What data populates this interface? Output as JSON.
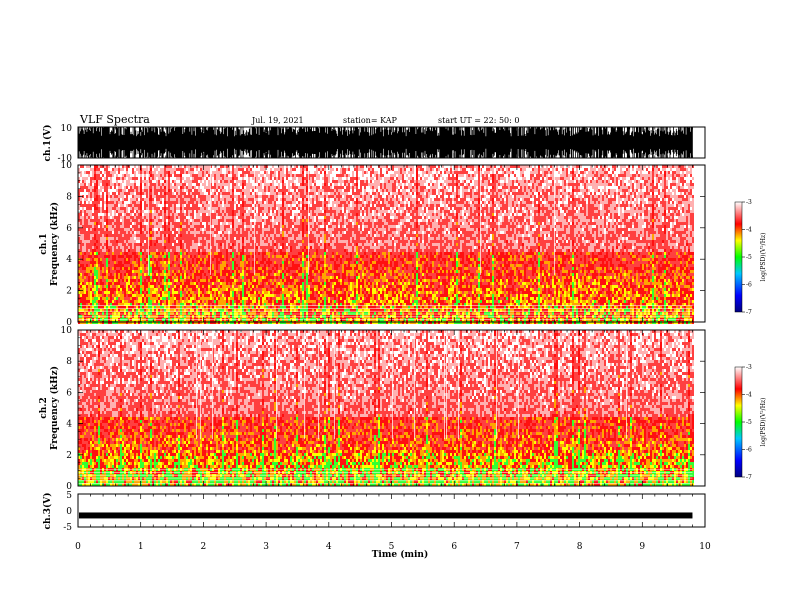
{
  "header": {
    "title": "VLF Spectra",
    "date": "Jul. 19, 2021",
    "station": "station= KAP",
    "start": "start UT = 22: 50: 0"
  },
  "chart_data": {
    "type": "heatmap",
    "xlabel": "Time (min)",
    "x_ticks": [
      "0",
      "1",
      "2",
      "3",
      "4",
      "5",
      "6",
      "7",
      "8",
      "9",
      "10"
    ],
    "xlim": [
      0,
      10
    ],
    "data_end_min": 9.8,
    "panels": [
      {
        "name": "ch.1(V)",
        "ylabel": "ch.1(V)",
        "type": "waveform",
        "ylim": [
          -10,
          10
        ],
        "y_ticks": [
          "10",
          "-10"
        ]
      },
      {
        "name": "ch.1",
        "ylabel": "ch.1 Frequency (kHz)",
        "ylabel_ch": "ch.1",
        "ylabel_freq": "Frequency (kHz)",
        "type": "spectrogram",
        "ylim": [
          0,
          10
        ],
        "y_ticks": [
          "0",
          "2",
          "4",
          "6",
          "8",
          "10"
        ],
        "colorbar_ticks": [
          "-3",
          "-4",
          "-5",
          "-6",
          "-7"
        ],
        "colorbar_label": "log(PSD)(V²/Hz)",
        "colorbar_range": [
          -7,
          -3
        ],
        "active_band_khz": [
          0,
          4.5
        ]
      },
      {
        "name": "ch.2",
        "ylabel": "ch.2 Frequency (kHz)",
        "ylabel_ch": "ch.2",
        "ylabel_freq": "Frequency (kHz)",
        "type": "spectrogram",
        "ylim": [
          0,
          10
        ],
        "y_ticks": [
          "0",
          "2",
          "4",
          "6",
          "8",
          "10"
        ],
        "colorbar_ticks": [
          "-3",
          "-4",
          "-5",
          "-6",
          "-7"
        ],
        "colorbar_label": "log(PSD)(V²/Hz)",
        "colorbar_range": [
          -7,
          -3
        ],
        "active_band_khz": [
          0,
          4.5
        ]
      },
      {
        "name": "ch.3(V)",
        "ylabel": "ch.3(V)",
        "type": "waveform",
        "ylim": [
          -5,
          5
        ],
        "y_ticks": [
          "5",
          "0",
          "-5"
        ]
      }
    ]
  }
}
